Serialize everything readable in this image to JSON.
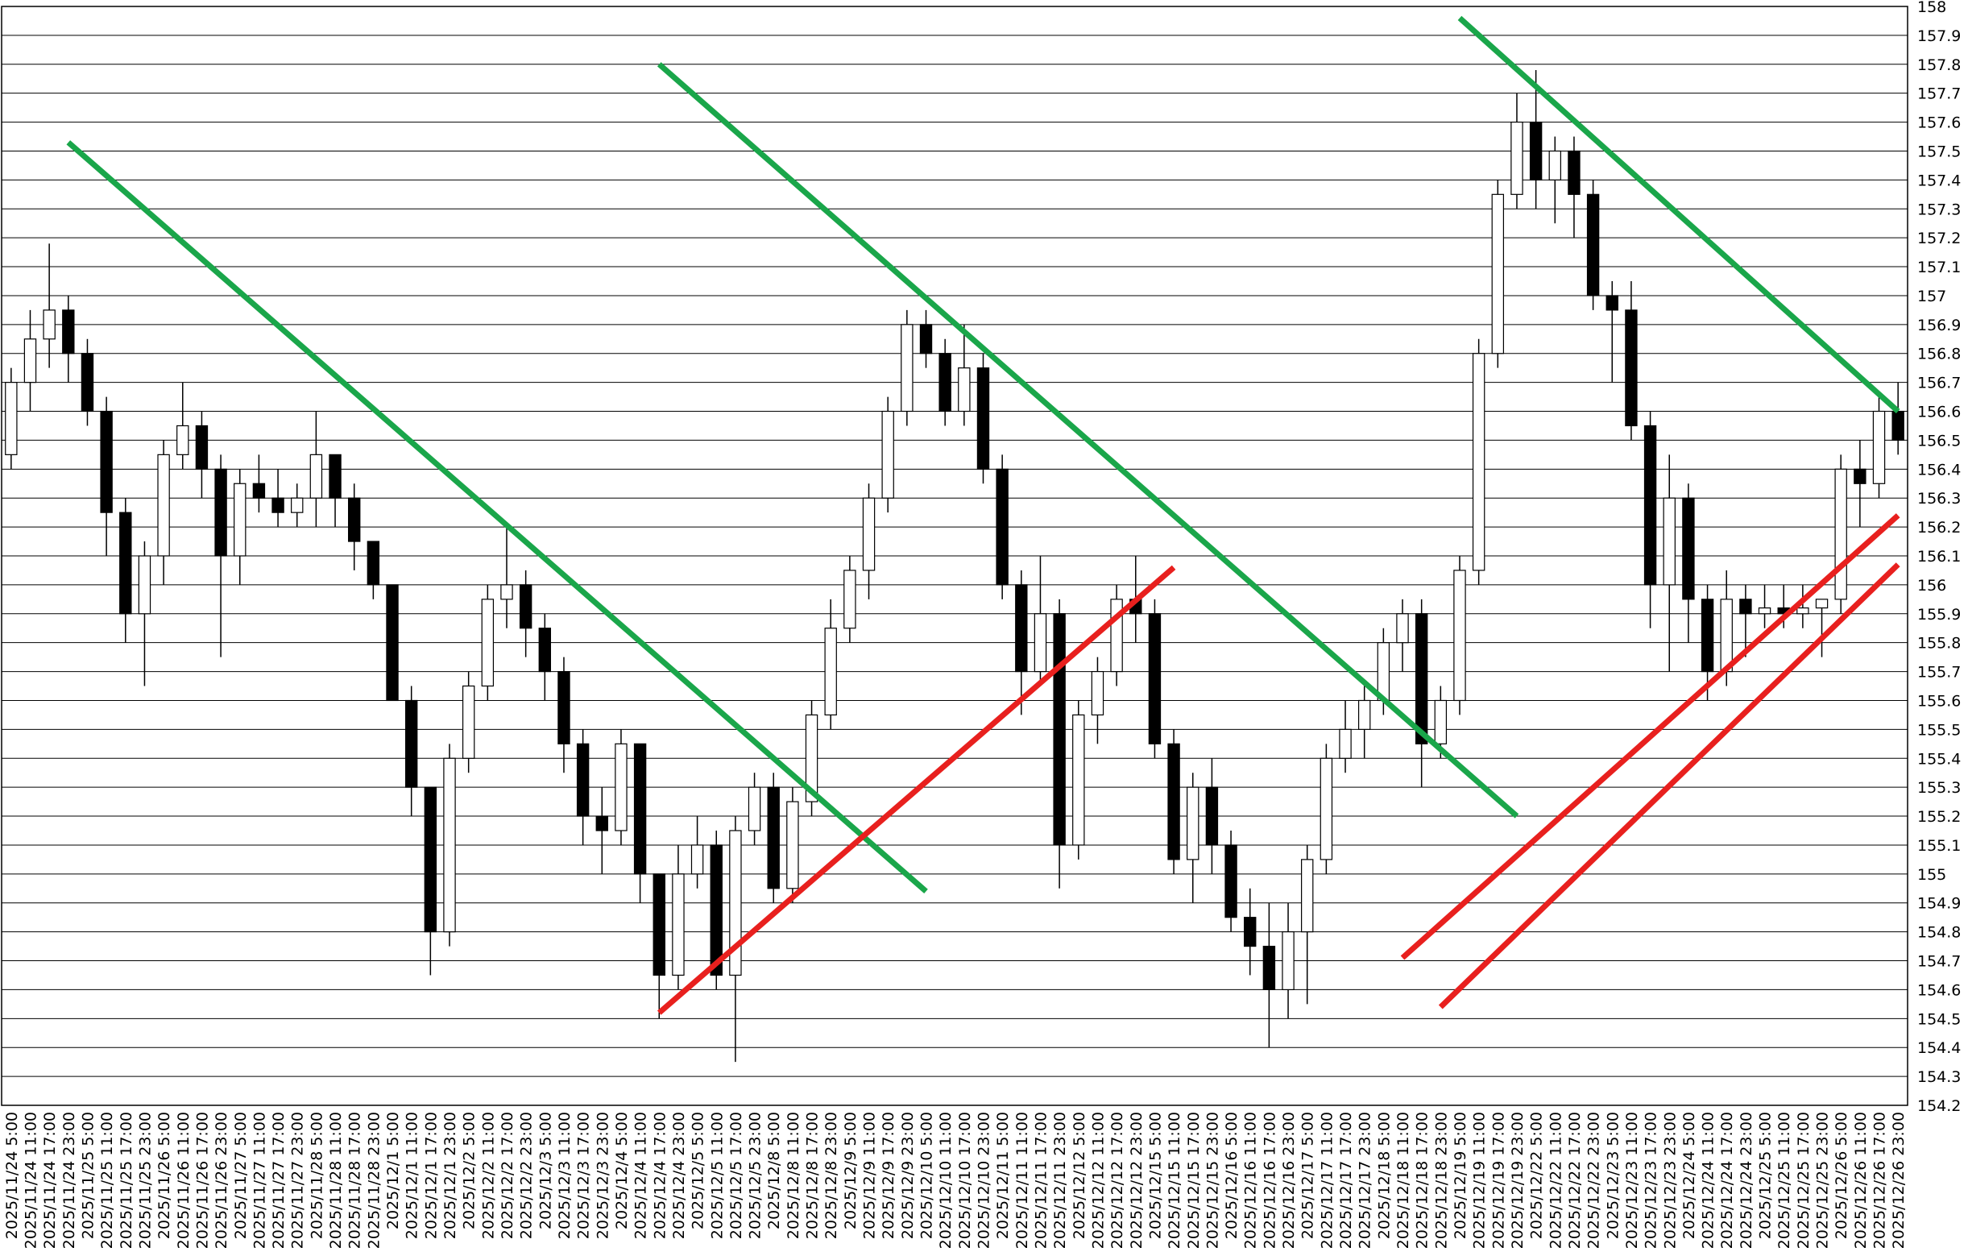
{
  "chart_data": {
    "type": "candlestick",
    "up_color": "#ffffff",
    "down_color": "#000000",
    "grid": true,
    "ylim": [
      154.2,
      158
    ],
    "yticks": [
      154.2,
      154.3,
      154.4,
      154.5,
      154.6,
      154.7,
      154.8,
      154.9,
      155,
      155.1,
      155.2,
      155.3,
      155.4,
      155.5,
      155.6,
      155.7,
      155.8,
      155.9,
      156,
      156.1,
      156.2,
      156.3,
      156.4,
      156.5,
      156.6,
      156.7,
      156.8,
      156.9,
      157,
      157.1,
      157.2,
      157.3,
      157.4,
      157.5,
      157.6,
      157.7,
      157.8,
      157.9,
      158
    ],
    "categories": [
      "2025/11/24 5:00",
      "2025/11/24 11:00",
      "2025/11/24 17:00",
      "2025/11/24 23:00",
      "2025/11/25 5:00",
      "2025/11/25 11:00",
      "2025/11/25 17:00",
      "2025/11/25 23:00",
      "2025/11/26 5:00",
      "2025/11/26 11:00",
      "2025/11/26 17:00",
      "2025/11/26 23:00",
      "2025/11/27 5:00",
      "2025/11/27 11:00",
      "2025/11/27 17:00",
      "2025/11/27 23:00",
      "2025/11/28 5:00",
      "2025/11/28 11:00",
      "2025/11/28 17:00",
      "2025/11/28 23:00",
      "2025/12/1 5:00",
      "2025/12/1 11:00",
      "2025/12/1 17:00",
      "2025/12/1 23:00",
      "2025/12/2 5:00",
      "2025/12/2 11:00",
      "2025/12/2 17:00",
      "2025/12/2 23:00",
      "2025/12/3 5:00",
      "2025/12/3 11:00",
      "2025/12/3 17:00",
      "2025/12/3 23:00",
      "2025/12/4 5:00",
      "2025/12/4 11:00",
      "2025/12/4 17:00",
      "2025/12/4 23:00",
      "2025/12/5 5:00",
      "2025/12/5 11:00",
      "2025/12/5 17:00",
      "2025/12/5 23:00",
      "2025/12/8 5:00",
      "2025/12/8 11:00",
      "2025/12/8 17:00",
      "2025/12/8 23:00",
      "2025/12/9 5:00",
      "2025/12/9 11:00",
      "2025/12/9 17:00",
      "2025/12/9 23:00",
      "2025/12/10 5:00",
      "2025/12/10 11:00",
      "2025/12/10 17:00",
      "2025/12/10 23:00",
      "2025/12/11 5:00",
      "2025/12/11 11:00",
      "2025/12/11 17:00",
      "2025/12/11 23:00",
      "2025/12/12 5:00",
      "2025/12/12 11:00",
      "2025/12/12 17:00",
      "2025/12/12 23:00",
      "2025/12/15 5:00",
      "2025/12/15 11:00",
      "2025/12/15 17:00",
      "2025/12/15 23:00",
      "2025/12/16 5:00",
      "2025/12/16 11:00",
      "2025/12/16 17:00",
      "2025/12/16 23:00",
      "2025/12/17 5:00",
      "2025/12/17 11:00",
      "2025/12/17 17:00",
      "2025/12/17 23:00",
      "2025/12/18 5:00",
      "2025/12/18 11:00",
      "2025/12/18 17:00",
      "2025/12/18 23:00",
      "2025/12/19 5:00",
      "2025/12/19 11:00",
      "2025/12/19 17:00",
      "2025/12/19 23:00",
      "2025/12/22 5:00",
      "2025/12/22 11:00",
      "2025/12/22 17:00",
      "2025/12/22 23:00",
      "2025/12/23 5:00",
      "2025/12/23 11:00",
      "2025/12/23 17:00",
      "2025/12/23 23:00",
      "2025/12/24 5:00",
      "2025/12/24 11:00",
      "2025/12/24 17:00",
      "2025/12/24 23:00",
      "2025/12/25 5:00",
      "2025/12/25 11:00",
      "2025/12/25 17:00",
      "2025/12/25 23:00",
      "2025/12/26 5:00",
      "2025/12/26 11:00",
      "2025/12/26 17:00",
      "2025/12/26 23:00"
    ],
    "ohlc": [
      [
        156.45,
        156.75,
        156.4,
        156.7
      ],
      [
        156.7,
        156.95,
        156.6,
        156.85
      ],
      [
        156.85,
        157.18,
        156.75,
        156.95
      ],
      [
        156.95,
        157.0,
        156.7,
        156.8
      ],
      [
        156.8,
        156.85,
        156.55,
        156.6
      ],
      [
        156.6,
        156.65,
        156.1,
        156.25
      ],
      [
        156.25,
        156.3,
        155.8,
        155.9
      ],
      [
        155.9,
        156.15,
        155.65,
        156.1
      ],
      [
        156.1,
        156.5,
        156.0,
        156.45
      ],
      [
        156.45,
        156.7,
        156.4,
        156.55
      ],
      [
        156.55,
        156.6,
        156.3,
        156.4
      ],
      [
        156.4,
        156.45,
        155.75,
        156.1
      ],
      [
        156.1,
        156.4,
        156.0,
        156.35
      ],
      [
        156.35,
        156.45,
        156.25,
        156.3
      ],
      [
        156.3,
        156.4,
        156.2,
        156.25
      ],
      [
        156.25,
        156.35,
        156.2,
        156.3
      ],
      [
        156.3,
        156.6,
        156.2,
        156.45
      ],
      [
        156.45,
        156.45,
        156.2,
        156.3
      ],
      [
        156.3,
        156.35,
        156.05,
        156.15
      ],
      [
        156.15,
        156.15,
        155.95,
        156.0
      ],
      [
        156.0,
        156.0,
        155.6,
        155.6
      ],
      [
        155.6,
        155.65,
        155.2,
        155.3
      ],
      [
        155.3,
        155.3,
        154.65,
        154.8
      ],
      [
        154.8,
        155.45,
        154.75,
        155.4
      ],
      [
        155.4,
        155.7,
        155.35,
        155.65
      ],
      [
        155.65,
        156.0,
        155.6,
        155.95
      ],
      [
        155.95,
        156.2,
        155.85,
        156.0
      ],
      [
        156.0,
        156.05,
        155.75,
        155.85
      ],
      [
        155.85,
        155.9,
        155.6,
        155.7
      ],
      [
        155.7,
        155.75,
        155.35,
        155.45
      ],
      [
        155.45,
        155.5,
        155.1,
        155.2
      ],
      [
        155.2,
        155.3,
        155.0,
        155.15
      ],
      [
        155.15,
        155.5,
        155.1,
        155.45
      ],
      [
        155.45,
        155.45,
        154.9,
        155.0
      ],
      [
        155.0,
        155.0,
        154.5,
        154.65
      ],
      [
        154.65,
        155.1,
        154.6,
        155.0
      ],
      [
        155.0,
        155.2,
        154.95,
        155.1
      ],
      [
        155.1,
        155.15,
        154.6,
        154.65
      ],
      [
        154.65,
        155.2,
        154.35,
        155.15
      ],
      [
        155.15,
        155.35,
        155.1,
        155.3
      ],
      [
        155.3,
        155.35,
        154.9,
        154.95
      ],
      [
        154.95,
        155.3,
        154.9,
        155.25
      ],
      [
        155.25,
        155.6,
        155.2,
        155.55
      ],
      [
        155.55,
        155.95,
        155.5,
        155.85
      ],
      [
        155.85,
        156.1,
        155.8,
        156.05
      ],
      [
        156.05,
        156.35,
        155.95,
        156.3
      ],
      [
        156.3,
        156.65,
        156.25,
        156.6
      ],
      [
        156.6,
        156.95,
        156.55,
        156.9
      ],
      [
        156.9,
        156.95,
        156.75,
        156.8
      ],
      [
        156.8,
        156.85,
        156.55,
        156.6
      ],
      [
        156.6,
        156.9,
        156.55,
        156.75
      ],
      [
        156.75,
        156.8,
        156.35,
        156.4
      ],
      [
        156.4,
        156.45,
        155.95,
        156.0
      ],
      [
        156.0,
        156.05,
        155.55,
        155.7
      ],
      [
        155.7,
        156.1,
        155.65,
        155.9
      ],
      [
        155.9,
        155.95,
        154.95,
        155.1
      ],
      [
        155.1,
        155.6,
        155.05,
        155.55
      ],
      [
        155.55,
        155.75,
        155.45,
        155.7
      ],
      [
        155.7,
        156.0,
        155.65,
        155.95
      ],
      [
        155.95,
        156.1,
        155.8,
        155.9
      ],
      [
        155.9,
        155.95,
        155.4,
        155.45
      ],
      [
        155.45,
        155.5,
        155.0,
        155.05
      ],
      [
        155.05,
        155.35,
        154.9,
        155.3
      ],
      [
        155.3,
        155.4,
        155.0,
        155.1
      ],
      [
        155.1,
        155.15,
        154.8,
        154.85
      ],
      [
        154.85,
        154.95,
        154.65,
        154.75
      ],
      [
        154.75,
        154.9,
        154.4,
        154.6
      ],
      [
        154.6,
        154.9,
        154.5,
        154.8
      ],
      [
        154.8,
        155.1,
        154.55,
        155.05
      ],
      [
        155.05,
        155.45,
        155.0,
        155.4
      ],
      [
        155.4,
        155.6,
        155.35,
        155.5
      ],
      [
        155.5,
        155.65,
        155.4,
        155.6
      ],
      [
        155.6,
        155.85,
        155.55,
        155.8
      ],
      [
        155.8,
        155.95,
        155.7,
        155.9
      ],
      [
        155.9,
        155.95,
        155.3,
        155.45
      ],
      [
        155.45,
        155.65,
        155.4,
        155.6
      ],
      [
        155.6,
        156.1,
        155.55,
        156.05
      ],
      [
        156.05,
        156.85,
        156.0,
        156.8
      ],
      [
        156.8,
        157.4,
        156.75,
        157.35
      ],
      [
        157.35,
        157.7,
        157.3,
        157.6
      ],
      [
        157.6,
        157.78,
        157.3,
        157.4
      ],
      [
        157.4,
        157.55,
        157.25,
        157.5
      ],
      [
        157.5,
        157.55,
        157.2,
        157.35
      ],
      [
        157.35,
        157.4,
        156.95,
        157.0
      ],
      [
        157.0,
        157.05,
        156.7,
        156.95
      ],
      [
        156.95,
        157.05,
        156.5,
        156.55
      ],
      [
        156.55,
        156.6,
        155.85,
        156.0
      ],
      [
        156.0,
        156.45,
        155.7,
        156.3
      ],
      [
        156.3,
        156.35,
        155.8,
        155.95
      ],
      [
        155.95,
        156.0,
        155.6,
        155.7
      ],
      [
        155.7,
        156.05,
        155.65,
        155.95
      ],
      [
        155.95,
        156.0,
        155.75,
        155.9
      ],
      [
        155.9,
        156.0,
        155.85,
        155.92
      ],
      [
        155.92,
        156.0,
        155.85,
        155.9
      ],
      [
        155.9,
        156.0,
        155.85,
        155.92
      ],
      [
        155.92,
        155.95,
        155.75,
        155.95
      ],
      [
        155.95,
        156.45,
        155.9,
        156.4
      ],
      [
        156.4,
        156.5,
        156.2,
        156.35
      ],
      [
        156.35,
        156.65,
        156.3,
        156.6
      ],
      [
        156.6,
        156.7,
        156.45,
        156.5
      ]
    ],
    "trendlines": [
      {
        "color": "#1aa64a",
        "from_category": "2025/11/24 23:00",
        "from_value": 157.53,
        "to_category": "2025/12/10 5:00",
        "to_value": 154.94
      },
      {
        "color": "#1aa64a",
        "from_category": "2025/12/4 17:00",
        "from_value": 157.8,
        "to_category": "2025/12/19 23:00",
        "to_value": 155.2
      },
      {
        "color": "#1aa64a",
        "from_category": "2025/12/19 5:00",
        "from_value": 157.96,
        "to_category": "2025/12/26 23:00",
        "to_value": 156.6
      },
      {
        "color": "#e8201e",
        "from_category": "2025/12/4 17:00",
        "from_value": 154.52,
        "to_category": "2025/12/15 11:00",
        "to_value": 156.06
      },
      {
        "color": "#e8201e",
        "from_category": "2025/12/18 11:00",
        "from_value": 154.71,
        "to_category": "2025/12/26 23:00",
        "to_value": 156.24
      },
      {
        "color": "#e8201e",
        "from_category": "2025/12/18 23:00",
        "from_value": 154.54,
        "to_category": "2025/12/26 23:00",
        "to_value": 156.07
      }
    ]
  }
}
